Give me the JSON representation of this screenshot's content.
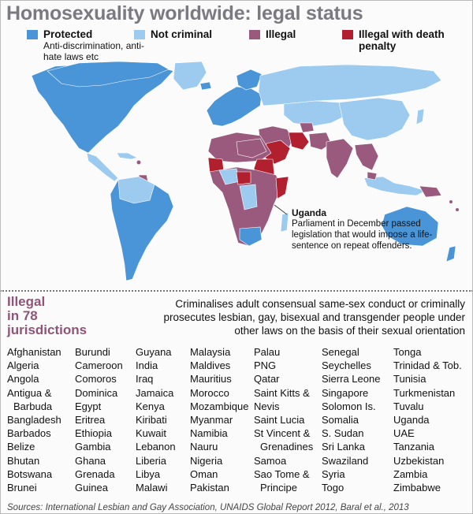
{
  "title": "Homosexuality worldwide: legal status",
  "legend": [
    {
      "label": "Protected",
      "sub": "Anti-discrimination, anti-hate laws etc",
      "color": "#4a95d8"
    },
    {
      "label": "Not criminal",
      "sub": "",
      "color": "#9ccbef"
    },
    {
      "label": "Illegal",
      "sub": "",
      "color": "#9a5a7e"
    },
    {
      "label": "Illegal with death penalty",
      "sub": "",
      "color": "#b21f2e"
    }
  ],
  "note": {
    "heading": "Uganda",
    "text": "Parliament in December passed legislation that would impose a life-sentence on repeat offenders."
  },
  "illegal": {
    "heading_line1": "Illegal",
    "heading_line2": "in 78",
    "heading_line3": "jurisdictions",
    "description": "Criminalises adult consensual same-sex conduct or criminally prosecutes lesbian, gay, bisexual and transgender people under other laws on the basis of their sexual orientation"
  },
  "country_columns": [
    [
      "Afghanistan",
      "Algeria",
      "Angola",
      "Antigua &",
      "  Barbuda",
      "Bangladesh",
      "Barbados",
      "Belize",
      "Bhutan",
      "Botswana",
      "Brunei"
    ],
    [
      "Burundi",
      "Cameroon",
      "Comoros",
      "Dominica",
      "Egypt",
      "Eritrea",
      "Ethiopia",
      "Gambia",
      "Ghana",
      "Grenada",
      "Guinea"
    ],
    [
      "Guyana",
      "India",
      "Iraq",
      "Jamaica",
      "Kenya",
      "Kiribati",
      "Kuwait",
      "Lebanon",
      "Liberia",
      "Libya",
      "Malawi"
    ],
    [
      "Malaysia",
      "Maldives",
      "Mauritius",
      "Morocco",
      "Mozambique",
      "Myanmar",
      "Namibia",
      "Nauru",
      "Nigeria",
      "Oman",
      "Pakistan"
    ],
    [
      "Palau",
      "PNG",
      "Qatar",
      "Saint Kitts &",
      "Nevis",
      "Saint Lucia",
      "St Vincent &",
      "  Grenadines",
      "Samoa",
      "Sao Tome &",
      "  Principe"
    ],
    [
      "Senegal",
      "Seychelles",
      "Sierra Leone",
      "Singapore",
      "Solomon Is.",
      "Somalia",
      "S. Sudan",
      "Sri Lanka",
      "Swaziland",
      "Syria",
      "Togo"
    ],
    [
      "Tonga",
      "Trinidad & Tob.",
      "Tunisia",
      "Turkmenistan",
      "Tuvalu",
      "Uganda",
      "UAE",
      "Tanzania",
      "Uzbekistan",
      "Zambia",
      "Zimbabwe"
    ]
  ],
  "source": "Sources: International Lesbian and Gay Association, UNAIDS Global Report 2012, Baral et al., 2013"
}
